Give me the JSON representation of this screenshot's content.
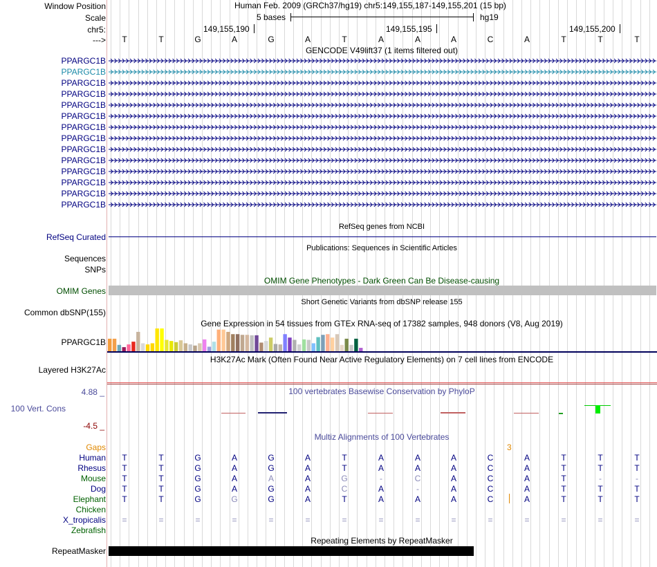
{
  "header": {
    "window_position_label": "Window Position",
    "scale_label": "Scale",
    "chr_label": "chr5:",
    "strand_label": "--->",
    "assembly_title": "Human Feb. 2009 (GRCh37/hg19)   chr5:149,155,187-149,155,201 (15 bp)",
    "scale_text": "5 bases",
    "scale_db": "hg19",
    "positions": [
      "149,155,190",
      "149,155,195",
      "149,155,200"
    ],
    "bases": [
      "T",
      "T",
      "G",
      "A",
      "G",
      "A",
      "T",
      "A",
      "A",
      "A",
      "C",
      "A",
      "T",
      "T",
      "T"
    ]
  },
  "gencode": {
    "title": "GENCODE V49lift37 (1 items filtered out)",
    "genes": [
      {
        "name": "PPARGC1B",
        "color": "#000080"
      },
      {
        "name": "PPARGC1B",
        "color": "#1b8aa8"
      },
      {
        "name": "PPARGC1B",
        "color": "#000080"
      },
      {
        "name": "PPARGC1B",
        "color": "#000080"
      },
      {
        "name": "PPARGC1B",
        "color": "#000080"
      },
      {
        "name": "PPARGC1B",
        "color": "#000080"
      },
      {
        "name": "PPARGC1B",
        "color": "#000080"
      },
      {
        "name": "PPARGC1B",
        "color": "#000080"
      },
      {
        "name": "PPARGC1B",
        "color": "#000080"
      },
      {
        "name": "PPARGC1B",
        "color": "#000080"
      },
      {
        "name": "PPARGC1B",
        "color": "#000080"
      },
      {
        "name": "PPARGC1B",
        "color": "#000080"
      },
      {
        "name": "PPARGC1B",
        "color": "#000080"
      },
      {
        "name": "PPARGC1B",
        "color": "#000080"
      }
    ]
  },
  "refseq": {
    "title": "RefSeq genes from NCBI",
    "label": "RefSeq Curated"
  },
  "publications": {
    "title": "Publications: Sequences in Scientific Articles",
    "label1": "Sequences",
    "label2": "SNPs"
  },
  "omim": {
    "title": "OMIM Gene Phenotypes - Dark Green Can Be Disease-causing",
    "label": "OMIM Genes"
  },
  "dbsnp": {
    "title": "Short Genetic Variants from dbSNP release 155",
    "label": "Common dbSNP(155)"
  },
  "gtex": {
    "title": "Gene Expression in 54 tissues from GTEx RNA-seq of 17382 samples, 948 donors (V8, Aug 2019)",
    "label": "PPARGC1B",
    "bar_values": [
      0.55,
      0.55,
      0.28,
      0.18,
      0.3,
      0.42,
      0.85,
      0.35,
      0.3,
      0.35,
      1.0,
      1.0,
      0.5,
      0.45,
      0.4,
      0.48,
      0.35,
      0.3,
      0.25,
      0.35,
      0.52,
      0.2,
      0.42,
      0.95,
      0.95,
      0.85,
      0.75,
      0.75,
      0.72,
      0.72,
      0.7,
      0.7,
      0.38,
      0.45,
      0.6,
      0.32,
      0.3,
      0.75,
      0.6,
      0.5,
      0.3,
      0.52,
      0.5,
      0.35,
      0.62,
      0.72,
      0.75,
      0.6,
      0.75,
      0.28,
      0.55,
      0.28,
      0.55,
      0.15
    ],
    "bar_colors": [
      "#f39c3c",
      "#f3a04a",
      "#6ea8b8",
      "#9b1b5a",
      "#ff6699",
      "#e8281e",
      "#c8b49e",
      "#d9d9d9",
      "#ffd700",
      "#ffd700",
      "#ffe600",
      "#ffff00",
      "#e6e633",
      "#e8e800",
      "#cccc33",
      "#d9c896",
      "#c6b08c",
      "#c8c8c8",
      "#b8a48a",
      "#d9c8b0",
      "#ee82ee",
      "#9f9fdf",
      "#b0e0e6",
      "#ffb07a",
      "#ffc896",
      "#d0a880",
      "#a08060",
      "#907060",
      "#c0a890",
      "#d4b8a0",
      "#c0c0c0",
      "#704898",
      "#b08c70",
      "#d8d8d8",
      "#cccc66",
      "#a8a8a8",
      "#c0b4a8",
      "#8080ff",
      "#8040c0",
      "#b0b0b0",
      "#d0d0d0",
      "#a0e0a0",
      "#c8c8c8",
      "#80c0ff",
      "#60c0c0",
      "#7da0b8",
      "#ffb090",
      "#ffd0a0",
      "#d8c8b8",
      "#e8d8c8",
      "#7a8a4a",
      "#c8c8c8",
      "#006040",
      "#b060d0"
    ]
  },
  "h3k27ac": {
    "title": "H3K27Ac Mark (Often Found Near Active Regulatory Elements) on 7 cell lines from ENCODE",
    "label": "Layered H3K27Ac"
  },
  "phylop": {
    "title": "100 vertebrates Basewise Conservation by PhyloP",
    "label": "100 Vert. Cons",
    "max": "4.88 _",
    "min": "-4.5 _"
  },
  "multiz": {
    "title": "Multiz Alignments of 100 Vertebrates",
    "gaps_label": "Gaps",
    "gap_value": "3",
    "species": [
      {
        "name": "Human",
        "color": "#000080",
        "bases": [
          "T",
          "T",
          "G",
          "A",
          "G",
          "A",
          "T",
          "A",
          "A",
          "A",
          "C",
          "A",
          "T",
          "T",
          "T"
        ]
      },
      {
        "name": "Rhesus",
        "color": "#000080",
        "bases": [
          "T",
          "T",
          "G",
          "A",
          "G",
          "A",
          "T",
          "A",
          "A",
          "A",
          "C",
          "A",
          "T",
          "T",
          "T"
        ]
      },
      {
        "name": "Mouse",
        "color": "#006000",
        "bases": [
          "T",
          "T",
          "G",
          "A",
          "A",
          "A",
          "G",
          "-",
          "C",
          "A",
          "C",
          "A",
          "T",
          "-",
          "-"
        ]
      },
      {
        "name": "Dog",
        "color": "#000080",
        "bases": [
          "T",
          "T",
          "G",
          "A",
          "G",
          "A",
          "C",
          "A",
          "-",
          "A",
          "C",
          "A",
          "T",
          "T",
          "T"
        ]
      },
      {
        "name": "Elephant",
        "color": "#006000",
        "bases": [
          "T",
          "T",
          "G",
          "G",
          "G",
          "A",
          "T",
          "A",
          "A",
          "A",
          "C",
          "A",
          "T",
          "T",
          "T"
        ]
      },
      {
        "name": "Chicken",
        "color": "#006000",
        "bases": [
          "",
          "",
          "",
          "",
          "",
          "",
          "",
          "",
          "",
          "",
          "",
          "",
          "",
          "",
          ""
        ]
      },
      {
        "name": "X_tropicalis",
        "color": "#000080",
        "bases": [
          "=",
          "=",
          "=",
          "=",
          "=",
          "=",
          "=",
          "=",
          "=",
          "=",
          "=",
          "=",
          "=",
          "=",
          "="
        ]
      },
      {
        "name": "Zebrafish",
        "color": "#006000",
        "bases": [
          "",
          "",
          "",
          "",
          "",
          "",
          "",
          "",
          "",
          "",
          "",
          "",
          "",
          "",
          ""
        ]
      }
    ],
    "faded": [
      [],
      [],
      [
        4,
        6,
        7,
        8,
        13,
        14
      ],
      [
        6,
        8
      ],
      [
        3
      ],
      [],
      [
        0,
        1,
        2,
        3,
        4,
        5,
        6,
        7,
        8,
        9,
        10,
        11,
        12,
        13,
        14
      ],
      []
    ]
  },
  "repeatmasker": {
    "title": "Repeating Elements by RepeatMasker",
    "label": "RepeatMasker"
  }
}
